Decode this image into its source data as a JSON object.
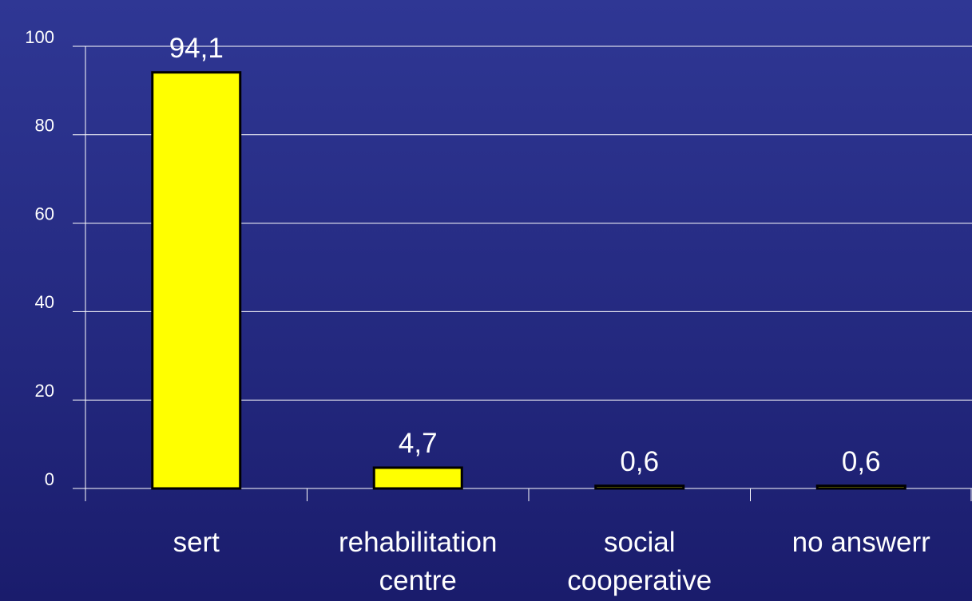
{
  "chart_data": {
    "type": "bar",
    "categories": [
      "sert",
      "rehabilitation centre",
      "social cooperative",
      "no answerr"
    ],
    "values": [
      94.1,
      4.7,
      0.6,
      0.6
    ],
    "value_labels": [
      "94,1",
      "4,7",
      "0,6",
      "0,6"
    ],
    "color": "#ffff00",
    "ylim": [
      0,
      100
    ],
    "yticks": [
      0,
      20,
      40,
      60,
      80,
      100
    ],
    "grid": true
  }
}
